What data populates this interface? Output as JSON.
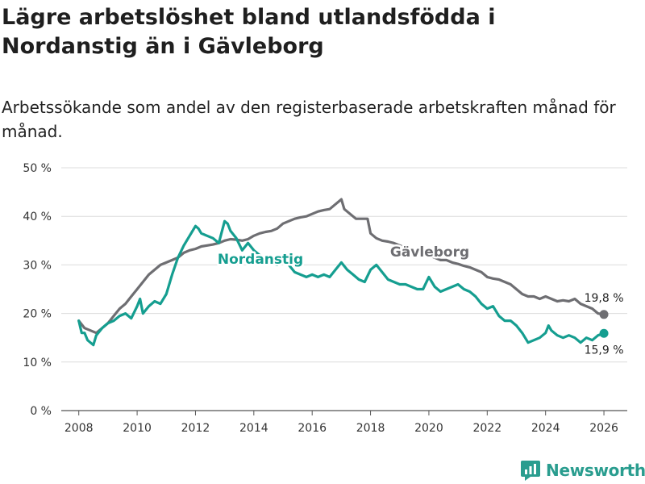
{
  "title": "Lägre arbetslöshet bland utlandsfödda i Nordanstig än i Gävleborg",
  "subtitle": "Arbetssökande som andel av den registerbaserade arbetskraften månad för månad.",
  "brand": {
    "name": "Newsworthy",
    "icon": "newsworthy-logo-icon",
    "color": "#2a9d8f"
  },
  "colors": {
    "nordanstig": "#159e90",
    "gavleborg": "#6e6e72"
  },
  "chart_data": {
    "type": "line",
    "title": "Lägre arbetslöshet bland utlandsfödda i Nordanstig än i Gävleborg",
    "xlabel": "",
    "ylabel": "",
    "xlim": [
      2007.4,
      2026.8
    ],
    "ylim": [
      0,
      50
    ],
    "x_ticks": [
      "2008",
      "2010",
      "2012",
      "2014",
      "2016",
      "2018",
      "2020",
      "2022",
      "2024",
      "2026"
    ],
    "y_ticks": [
      "0 %",
      "10 %",
      "20 %",
      "30 %",
      "40 %",
      "50 %"
    ],
    "grid": true,
    "series": [
      {
        "name": "Gävleborg",
        "end_label": "19,8 %",
        "points": [
          [
            2008.0,
            18.5
          ],
          [
            2008.2,
            17.0
          ],
          [
            2008.4,
            16.5
          ],
          [
            2008.6,
            16.0
          ],
          [
            2008.8,
            17.0
          ],
          [
            2009.0,
            18.0
          ],
          [
            2009.2,
            19.5
          ],
          [
            2009.4,
            21.0
          ],
          [
            2009.6,
            22.0
          ],
          [
            2009.8,
            23.5
          ],
          [
            2010.0,
            25.0
          ],
          [
            2010.2,
            26.5
          ],
          [
            2010.4,
            28.0
          ],
          [
            2010.6,
            29.0
          ],
          [
            2010.8,
            30.0
          ],
          [
            2011.0,
            30.5
          ],
          [
            2011.2,
            31.0
          ],
          [
            2011.4,
            31.5
          ],
          [
            2011.6,
            32.5
          ],
          [
            2011.8,
            33.0
          ],
          [
            2012.0,
            33.3
          ],
          [
            2012.2,
            33.8
          ],
          [
            2012.4,
            34.0
          ],
          [
            2012.6,
            34.2
          ],
          [
            2012.8,
            34.5
          ],
          [
            2013.0,
            35.0
          ],
          [
            2013.2,
            35.3
          ],
          [
            2013.4,
            35.2
          ],
          [
            2013.6,
            35.0
          ],
          [
            2013.8,
            35.3
          ],
          [
            2014.0,
            36.0
          ],
          [
            2014.2,
            36.5
          ],
          [
            2014.4,
            36.8
          ],
          [
            2014.6,
            37.0
          ],
          [
            2014.8,
            37.5
          ],
          [
            2015.0,
            38.5
          ],
          [
            2015.2,
            39.0
          ],
          [
            2015.4,
            39.5
          ],
          [
            2015.6,
            39.8
          ],
          [
            2015.8,
            40.0
          ],
          [
            2016.0,
            40.5
          ],
          [
            2016.2,
            41.0
          ],
          [
            2016.4,
            41.3
          ],
          [
            2016.6,
            41.5
          ],
          [
            2016.8,
            42.5
          ],
          [
            2017.0,
            43.5
          ],
          [
            2017.1,
            41.5
          ],
          [
            2017.3,
            40.5
          ],
          [
            2017.5,
            39.5
          ],
          [
            2017.7,
            39.5
          ],
          [
            2017.9,
            39.5
          ],
          [
            2018.0,
            36.5
          ],
          [
            2018.2,
            35.5
          ],
          [
            2018.4,
            35.0
          ],
          [
            2018.6,
            34.8
          ],
          [
            2018.8,
            34.5
          ],
          [
            2019.0,
            34.0
          ],
          [
            2019.2,
            33.5
          ],
          [
            2019.4,
            33.0
          ],
          [
            2019.6,
            32.8
          ],
          [
            2019.8,
            32.5
          ],
          [
            2020.0,
            32.0
          ],
          [
            2020.2,
            31.5
          ],
          [
            2020.4,
            31.0
          ],
          [
            2020.6,
            31.0
          ],
          [
            2020.8,
            30.5
          ],
          [
            2021.0,
            30.2
          ],
          [
            2021.2,
            29.8
          ],
          [
            2021.4,
            29.5
          ],
          [
            2021.6,
            29.0
          ],
          [
            2021.8,
            28.5
          ],
          [
            2022.0,
            27.5
          ],
          [
            2022.2,
            27.2
          ],
          [
            2022.4,
            27.0
          ],
          [
            2022.6,
            26.5
          ],
          [
            2022.8,
            26.0
          ],
          [
            2023.0,
            25.0
          ],
          [
            2023.2,
            24.0
          ],
          [
            2023.4,
            23.5
          ],
          [
            2023.6,
            23.5
          ],
          [
            2023.8,
            23.0
          ],
          [
            2024.0,
            23.5
          ],
          [
            2024.2,
            23.0
          ],
          [
            2024.4,
            22.5
          ],
          [
            2024.6,
            22.7
          ],
          [
            2024.8,
            22.5
          ],
          [
            2025.0,
            23.0
          ],
          [
            2025.2,
            22.0
          ],
          [
            2025.4,
            21.5
          ],
          [
            2025.6,
            21.0
          ],
          [
            2025.8,
            20.0
          ],
          [
            2026.0,
            19.8
          ]
        ]
      },
      {
        "name": "Nordanstig",
        "end_label": "15,9 %",
        "points": [
          [
            2008.0,
            18.5
          ],
          [
            2008.1,
            16.0
          ],
          [
            2008.2,
            16.0
          ],
          [
            2008.3,
            14.5
          ],
          [
            2008.4,
            14.0
          ],
          [
            2008.5,
            13.5
          ],
          [
            2008.6,
            15.5
          ],
          [
            2008.8,
            17.0
          ],
          [
            2009.0,
            18.0
          ],
          [
            2009.2,
            18.5
          ],
          [
            2009.4,
            19.5
          ],
          [
            2009.6,
            20.0
          ],
          [
            2009.8,
            19.0
          ],
          [
            2010.0,
            21.5
          ],
          [
            2010.1,
            23.0
          ],
          [
            2010.2,
            20.0
          ],
          [
            2010.4,
            21.5
          ],
          [
            2010.6,
            22.5
          ],
          [
            2010.8,
            22.0
          ],
          [
            2011.0,
            24.0
          ],
          [
            2011.2,
            28.0
          ],
          [
            2011.4,
            31.5
          ],
          [
            2011.6,
            34.0
          ],
          [
            2011.8,
            36.0
          ],
          [
            2012.0,
            38.0
          ],
          [
            2012.1,
            37.5
          ],
          [
            2012.2,
            36.5
          ],
          [
            2012.4,
            36.0
          ],
          [
            2012.6,
            35.5
          ],
          [
            2012.8,
            34.5
          ],
          [
            2013.0,
            39.0
          ],
          [
            2013.1,
            38.5
          ],
          [
            2013.2,
            37.0
          ],
          [
            2013.4,
            35.5
          ],
          [
            2013.6,
            33.0
          ],
          [
            2013.8,
            34.5
          ],
          [
            2014.0,
            33.0
          ],
          [
            2014.2,
            32.0
          ],
          [
            2014.4,
            31.5
          ],
          [
            2014.6,
            30.5
          ],
          [
            2014.8,
            30.0
          ],
          [
            2015.0,
            31.0
          ],
          [
            2015.2,
            30.0
          ],
          [
            2015.4,
            28.5
          ],
          [
            2015.6,
            28.0
          ],
          [
            2015.8,
            27.5
          ],
          [
            2016.0,
            28.0
          ],
          [
            2016.2,
            27.5
          ],
          [
            2016.4,
            28.0
          ],
          [
            2016.6,
            27.5
          ],
          [
            2016.8,
            29.0
          ],
          [
            2017.0,
            30.5
          ],
          [
            2017.2,
            29.0
          ],
          [
            2017.4,
            28.0
          ],
          [
            2017.6,
            27.0
          ],
          [
            2017.8,
            26.5
          ],
          [
            2018.0,
            29.0
          ],
          [
            2018.2,
            30.0
          ],
          [
            2018.4,
            28.5
          ],
          [
            2018.6,
            27.0
          ],
          [
            2018.8,
            26.5
          ],
          [
            2019.0,
            26.0
          ],
          [
            2019.2,
            26.0
          ],
          [
            2019.4,
            25.5
          ],
          [
            2019.6,
            25.0
          ],
          [
            2019.8,
            25.0
          ],
          [
            2020.0,
            27.5
          ],
          [
            2020.2,
            25.5
          ],
          [
            2020.4,
            24.5
          ],
          [
            2020.6,
            25.0
          ],
          [
            2020.8,
            25.5
          ],
          [
            2021.0,
            26.0
          ],
          [
            2021.2,
            25.0
          ],
          [
            2021.4,
            24.5
          ],
          [
            2021.6,
            23.5
          ],
          [
            2021.8,
            22.0
          ],
          [
            2022.0,
            21.0
          ],
          [
            2022.2,
            21.5
          ],
          [
            2022.4,
            19.5
          ],
          [
            2022.6,
            18.5
          ],
          [
            2022.8,
            18.5
          ],
          [
            2023.0,
            17.5
          ],
          [
            2023.2,
            16.0
          ],
          [
            2023.4,
            14.0
          ],
          [
            2023.6,
            14.5
          ],
          [
            2023.8,
            15.0
          ],
          [
            2024.0,
            16.0
          ],
          [
            2024.1,
            17.5
          ],
          [
            2024.2,
            16.5
          ],
          [
            2024.4,
            15.5
          ],
          [
            2024.6,
            15.0
          ],
          [
            2024.8,
            15.5
          ],
          [
            2025.0,
            15.0
          ],
          [
            2025.2,
            14.0
          ],
          [
            2025.4,
            15.0
          ],
          [
            2025.6,
            14.5
          ],
          [
            2025.8,
            15.5
          ],
          [
            2026.0,
            15.9
          ]
        ]
      }
    ]
  }
}
